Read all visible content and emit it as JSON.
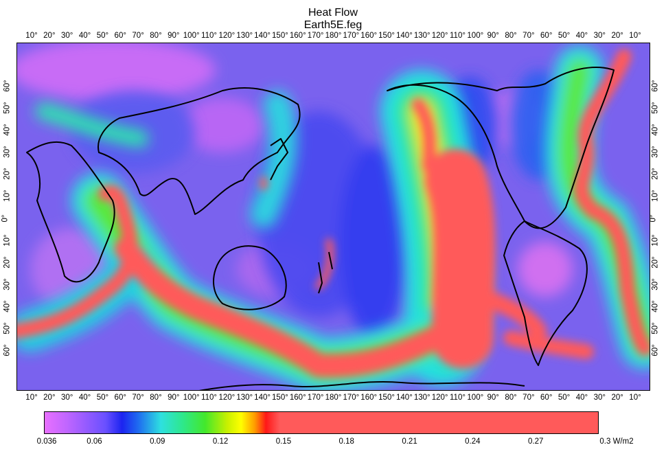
{
  "header": {
    "title": "Heat Flow",
    "subtitle": "Earth5E.feg"
  },
  "longitude_labels": [
    "10°",
    "20°",
    "30°",
    "40°",
    "50°",
    "60°",
    "70°",
    "80°",
    "90°",
    "100°",
    "110°",
    "120°",
    "130°",
    "140°",
    "150°",
    "160°",
    "170°",
    "180°",
    "170°",
    "160°",
    "150°",
    "140°",
    "130°",
    "120°",
    "110°",
    "100°",
    "90°",
    "80°",
    "70°",
    "60°",
    "50°",
    "40°",
    "30°",
    "20°",
    "10°"
  ],
  "latitude_labels": [
    "60°",
    "50°",
    "40°",
    "30°",
    "20°",
    "10°",
    "0°",
    "10°",
    "20°",
    "30°",
    "40°",
    "50°",
    "60°"
  ],
  "colorbar": {
    "labels": [
      "0.036",
      "0.06",
      "0.09",
      "0.12",
      "0.15",
      "0.18",
      "0.21",
      "0.24",
      "0.27",
      "0.3 W/m2"
    ],
    "values": [
      0.036,
      0.06,
      0.09,
      0.12,
      0.15,
      0.18,
      0.21,
      0.24,
      0.27,
      0.3
    ],
    "min": 0.036,
    "max": 0.3,
    "unit": "W/m2"
  },
  "colors": {
    "background_low": "#7a62ee",
    "ridge": "#ff5a5a",
    "coast": "#000000"
  }
}
